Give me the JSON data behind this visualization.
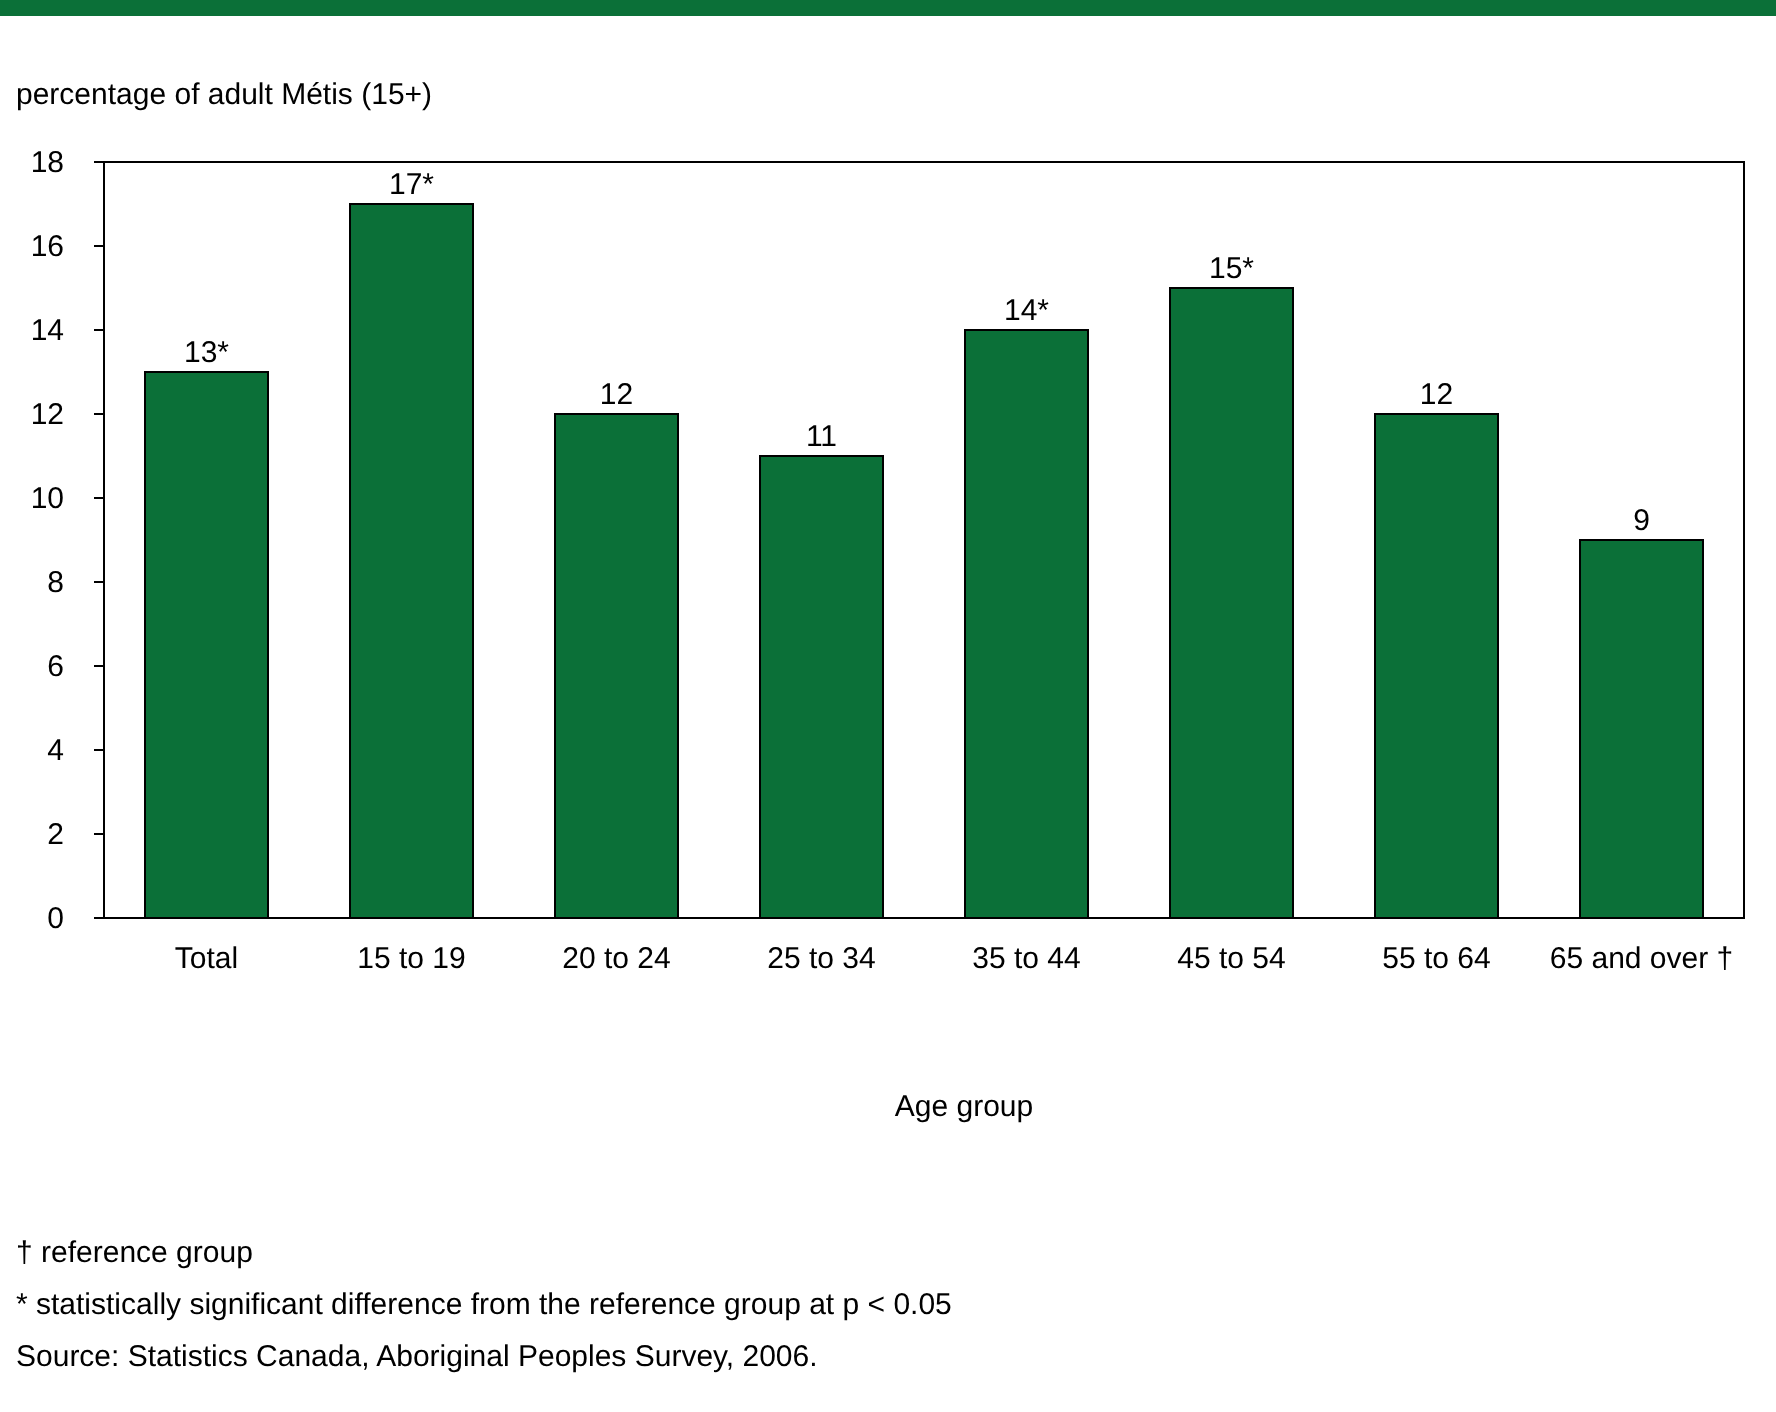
{
  "chart_data": {
    "type": "bar",
    "ylabel": "percentage of adult Métis (15+)",
    "xlabel": "Age group",
    "categories": [
      "Total",
      "15 to 19",
      "20 to 24",
      "25 to 34",
      "35 to 44",
      "45 to 54",
      "55 to 64",
      "65 and over †"
    ],
    "values": [
      13,
      17,
      12,
      11,
      14,
      15,
      12,
      9
    ],
    "value_labels": [
      "13*",
      "17*",
      "12",
      "11",
      "14*",
      "15*",
      "12",
      "9"
    ],
    "color": "#0b7038",
    "ylim": [
      0,
      18
    ],
    "yticks": [
      0,
      2,
      4,
      6,
      8,
      10,
      12,
      14,
      16,
      18
    ],
    "grid": false,
    "annotations": [
      "† reference group",
      "* statistically significant difference from the reference group at p < 0.05",
      "Source: Statistics Canada, Aboriginal Peoples Survey, 2006."
    ]
  }
}
